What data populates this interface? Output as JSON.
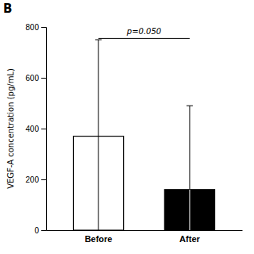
{
  "chart_data": {
    "type": "bar",
    "categories": [
      "Before",
      "After"
    ],
    "values": [
      370,
      160
    ],
    "colors": [
      "#ffffff",
      "#000000"
    ],
    "error_lower": [
      370,
      160
    ],
    "error_upper": [
      380,
      330
    ],
    "ylabel": "VEGF-A concentration (pg/mL)",
    "ylim": [
      0,
      800
    ],
    "yticks": [
      0,
      200,
      400,
      600,
      800
    ],
    "grid": false,
    "annotations": [
      {
        "text": "B"
      },
      {
        "text": "p=0.050",
        "y": 755
      }
    ]
  }
}
